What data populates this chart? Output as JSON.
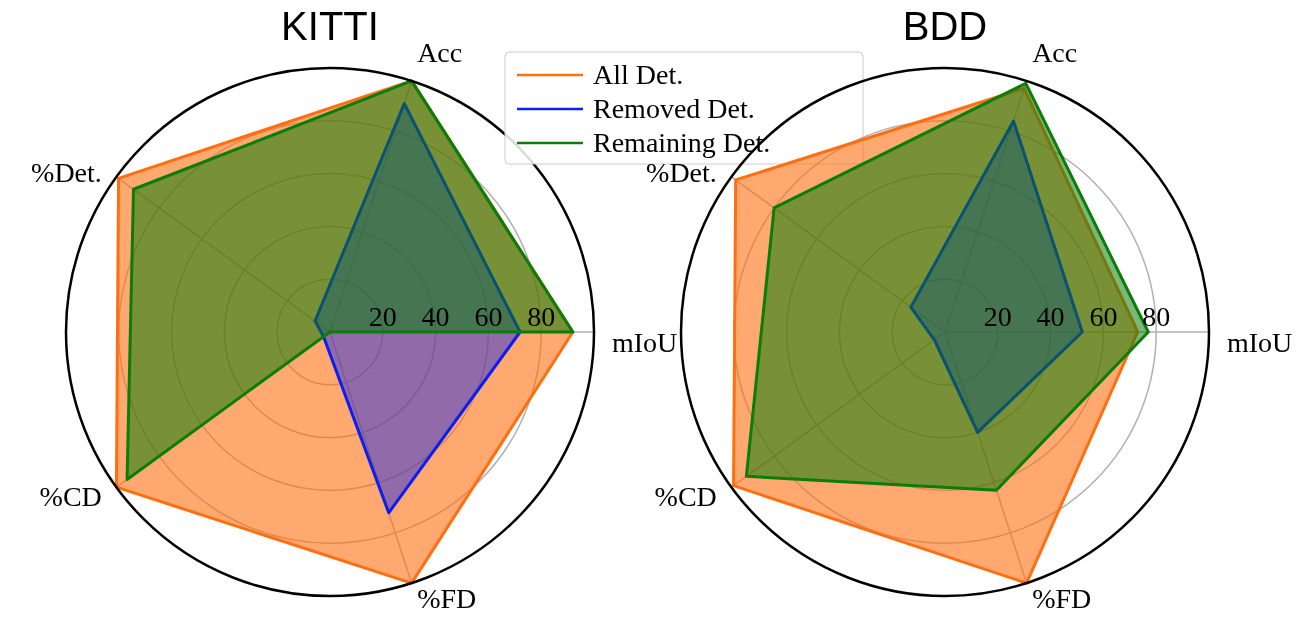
{
  "chart_data": [
    {
      "type": "radar",
      "title": "KITTI",
      "categories": [
        "Acc",
        "mIoU",
        "%FD",
        "%CD",
        "%Det."
      ],
      "ylim": [
        0,
        100
      ],
      "yticks": [
        20,
        40,
        60,
        80
      ],
      "grid": true,
      "legend": "top right",
      "series": [
        {
          "name": "All Det.",
          "color": "#ff6f10",
          "values": [
            100,
            92,
            100,
            100,
            99
          ]
        },
        {
          "name": "Removed Det.",
          "color": "#0a1ff0",
          "values": [
            91,
            72,
            72,
            3,
            7
          ]
        },
        {
          "name": "Remaining Det.",
          "color": "#0a7d0a",
          "values": [
            100,
            92,
            0,
            95,
            92
          ]
        }
      ]
    },
    {
      "type": "radar",
      "title": "BDD",
      "categories": [
        "Acc",
        "mIoU",
        "%FD",
        "%CD",
        "%Det."
      ],
      "ylim": [
        0,
        100
      ],
      "yticks": [
        20,
        40,
        60,
        80
      ],
      "grid": true,
      "series": [
        {
          "color": "#ff6f10",
          "values": [
            97,
            73,
            100,
            99,
            98
          ]
        },
        {
          "color": "#0a1ff0",
          "values": [
            84,
            52,
            40,
            5,
            16
          ]
        },
        {
          "color": "#0a7d0a",
          "values": [
            99,
            77,
            63,
            93,
            80
          ]
        }
      ]
    }
  ]
}
